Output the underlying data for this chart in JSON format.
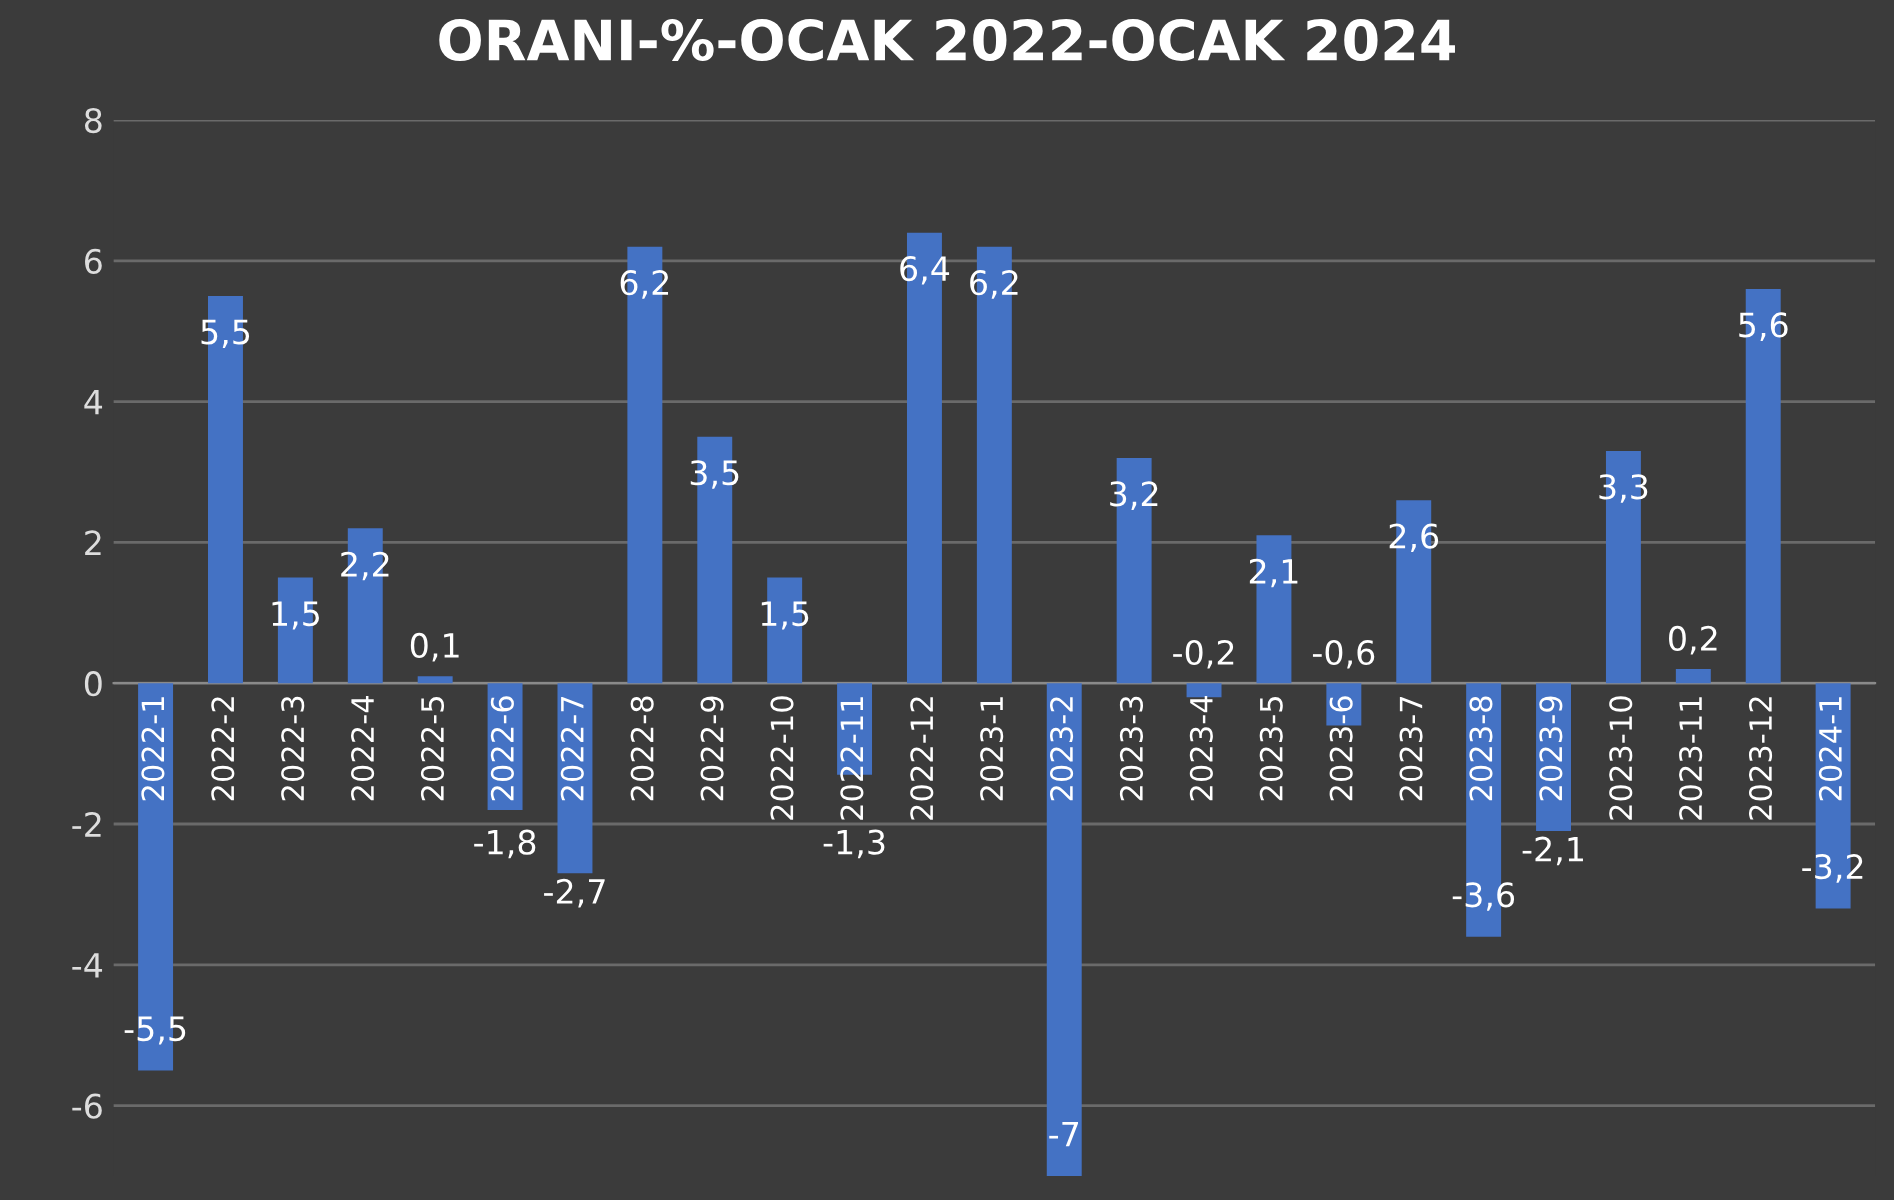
{
  "chart_data": {
    "type": "bar",
    "title": "ORANI-%-OCAK 2022-OCAK 2024",
    "categories": [
      "2022-1",
      "2022-2",
      "2022-3",
      "2022-4",
      "2022-5",
      "2022-6",
      "2022-7",
      "2022-8",
      "2022-9",
      "2022-10",
      "2022-11",
      "2022-12",
      "2023-1",
      "2023-2",
      "2023-3",
      "2023-4",
      "2023-5",
      "2023-6",
      "2023-7",
      "2023-8",
      "2023-9",
      "2023-10",
      "2023-11",
      "2023-12",
      "2024-1"
    ],
    "values": [
      -5.5,
      5.5,
      1.5,
      2.2,
      0.1,
      -1.8,
      -2.7,
      6.2,
      3.5,
      1.5,
      -1.3,
      6.4,
      6.2,
      -7,
      3.2,
      -0.2,
      2.1,
      -0.6,
      2.6,
      -3.6,
      -2.1,
      3.3,
      0.2,
      5.6,
      -3.2
    ],
    "value_labels": [
      "-5,5",
      "5,5",
      "1,5",
      "2,2",
      "0,1",
      "-1,8",
      "-2,7",
      "6,2",
      "3,5",
      "1,5",
      "-1,3",
      "6,4",
      "6,2",
      "-7",
      "3,2",
      "-0,2",
      "2,1",
      "-0,6",
      "2,6",
      "-3,6",
      "-2,1",
      "3,3",
      "0,2",
      "5,6",
      "-3,2"
    ],
    "color": "#4472c4",
    "ylim": [
      -7,
      8
    ],
    "yticks": [
      -6,
      -4,
      -2,
      0,
      2,
      4,
      6,
      8
    ],
    "grid": "y"
  }
}
